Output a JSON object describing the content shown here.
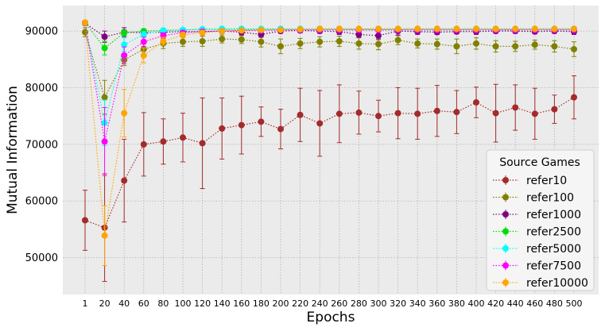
{
  "chart_data": {
    "type": "line",
    "title": "",
    "xlabel": "Epochs",
    "ylabel": "Mutual Information",
    "x": [
      1,
      20,
      40,
      60,
      80,
      100,
      120,
      140,
      160,
      180,
      200,
      220,
      240,
      260,
      280,
      300,
      320,
      340,
      360,
      380,
      400,
      420,
      440,
      460,
      480,
      500
    ],
    "x_tick_labels": [
      "1",
      "20",
      "40",
      "60",
      "80",
      "100",
      "120",
      "140",
      "160",
      "180",
      "200",
      "220",
      "240",
      "260",
      "280",
      "300",
      "320",
      "340",
      "360",
      "380",
      "400",
      "420",
      "440",
      "460",
      "480",
      "500"
    ],
    "y_ticks": [
      50000,
      60000,
      70000,
      80000,
      90000
    ],
    "y_tick_labels": [
      "50000",
      "60000",
      "70000",
      "80000",
      "90000"
    ],
    "ylim": [
      43500,
      94500
    ],
    "grid": true,
    "legend_title": "Source Games",
    "legend_position": "lower-right",
    "series": [
      {
        "name": "refer10",
        "color": "#a52a2a",
        "values": [
          56600,
          55300,
          63600,
          70000,
          70500,
          71200,
          70200,
          72800,
          73400,
          74000,
          72700,
          75200,
          73700,
          75400,
          75600,
          75000,
          75500,
          75400,
          75900,
          75700,
          77400,
          75500,
          76500,
          75400,
          76200,
          78300
        ],
        "errors": [
          5300,
          9500,
          7300,
          5600,
          4000,
          4300,
          8000,
          5400,
          5100,
          2600,
          3500,
          4700,
          5800,
          5100,
          3800,
          2800,
          4500,
          4500,
          4500,
          3800,
          2700,
          5100,
          4000,
          4500,
          2500,
          3800
        ]
      },
      {
        "name": "refer100",
        "color": "#808000",
        "values": [
          89800,
          78300,
          84900,
          86800,
          87800,
          88100,
          88200,
          88600,
          88500,
          88100,
          87300,
          87800,
          88100,
          88200,
          87800,
          87700,
          88400,
          87800,
          87700,
          87300,
          87800,
          87300,
          87300,
          87600,
          87300,
          86800
        ],
        "errors": [
          800,
          3000,
          1000,
          1000,
          900,
          800,
          900,
          700,
          700,
          900,
          1300,
          900,
          900,
          900,
          1000,
          1000,
          800,
          800,
          900,
          1300,
          1000,
          1000,
          900,
          800,
          1000,
          1300
        ]
      },
      {
        "name": "refer1000",
        "color": "#800080",
        "values": [
          91400,
          89000,
          89800,
          89700,
          89800,
          89900,
          89900,
          90000,
          89800,
          89400,
          90000,
          90100,
          90000,
          89900,
          89400,
          89200,
          90000,
          89900,
          89800,
          89900,
          89900,
          90000,
          90000,
          89900,
          90000,
          89900
        ],
        "errors": [
          300,
          1000,
          800,
          500,
          500,
          400,
          400,
          400,
          500,
          500,
          400,
          400,
          400,
          500,
          500,
          700,
          700,
          500,
          400,
          400,
          500,
          400,
          400,
          400,
          400,
          500
        ]
      },
      {
        "name": "refer2500",
        "color": "#00dd00",
        "values": [
          91500,
          87000,
          89700,
          90000,
          90100,
          90200,
          90300,
          90300,
          90300,
          90300,
          90300,
          90300,
          90300,
          90300,
          90300,
          90300,
          90300,
          90300,
          90300,
          90300,
          90300,
          90300,
          90300,
          90300,
          90300,
          90300
        ],
        "errors": [
          300,
          1200,
          500,
          300,
          300,
          300,
          300,
          300,
          300,
          300,
          300,
          300,
          300,
          300,
          300,
          300,
          300,
          300,
          300,
          300,
          300,
          300,
          300,
          300,
          300,
          300
        ]
      },
      {
        "name": "refer5000",
        "color": "#00ffff",
        "values": [
          91500,
          73800,
          87600,
          89400,
          90100,
          90200,
          90300,
          90400,
          90400,
          90400,
          90400,
          90400,
          90400,
          90400,
          90400,
          90400,
          90400,
          90400,
          90400,
          90400,
          90400,
          90400,
          90400,
          90400,
          90400,
          90400
        ],
        "errors": [
          300,
          4000,
          1200,
          500,
          400,
          300,
          300,
          300,
          300,
          300,
          300,
          300,
          300,
          300,
          300,
          300,
          300,
          300,
          300,
          300,
          300,
          300,
          300,
          300,
          300,
          300
        ]
      },
      {
        "name": "refer7500",
        "color": "#ff00ff",
        "values": [
          91500,
          70500,
          85700,
          88100,
          89200,
          89700,
          89900,
          90000,
          90100,
          90100,
          90200,
          90200,
          90200,
          90200,
          90200,
          90200,
          90200,
          90200,
          90200,
          90200,
          90200,
          90200,
          90200,
          90200,
          90200,
          90200
        ],
        "errors": [
          300,
          6000,
          1500,
          800,
          500,
          400,
          400,
          300,
          300,
          300,
          300,
          300,
          300,
          300,
          300,
          300,
          300,
          300,
          300,
          300,
          300,
          300,
          300,
          300,
          300,
          300
        ]
      },
      {
        "name": "refer10000",
        "color": "#ffa500",
        "values": [
          91500,
          53900,
          75500,
          85700,
          88200,
          89300,
          89700,
          90000,
          90100,
          90200,
          90200,
          90300,
          90400,
          90400,
          90400,
          90400,
          90400,
          90400,
          90400,
          90400,
          90400,
          90400,
          90400,
          90400,
          90400,
          90400
        ],
        "errors": [
          300,
          5300,
          4200,
          1300,
          700,
          500,
          400,
          300,
          300,
          300,
          300,
          300,
          300,
          300,
          300,
          300,
          300,
          300,
          300,
          300,
          300,
          300,
          300,
          300,
          300,
          300
        ]
      }
    ]
  }
}
